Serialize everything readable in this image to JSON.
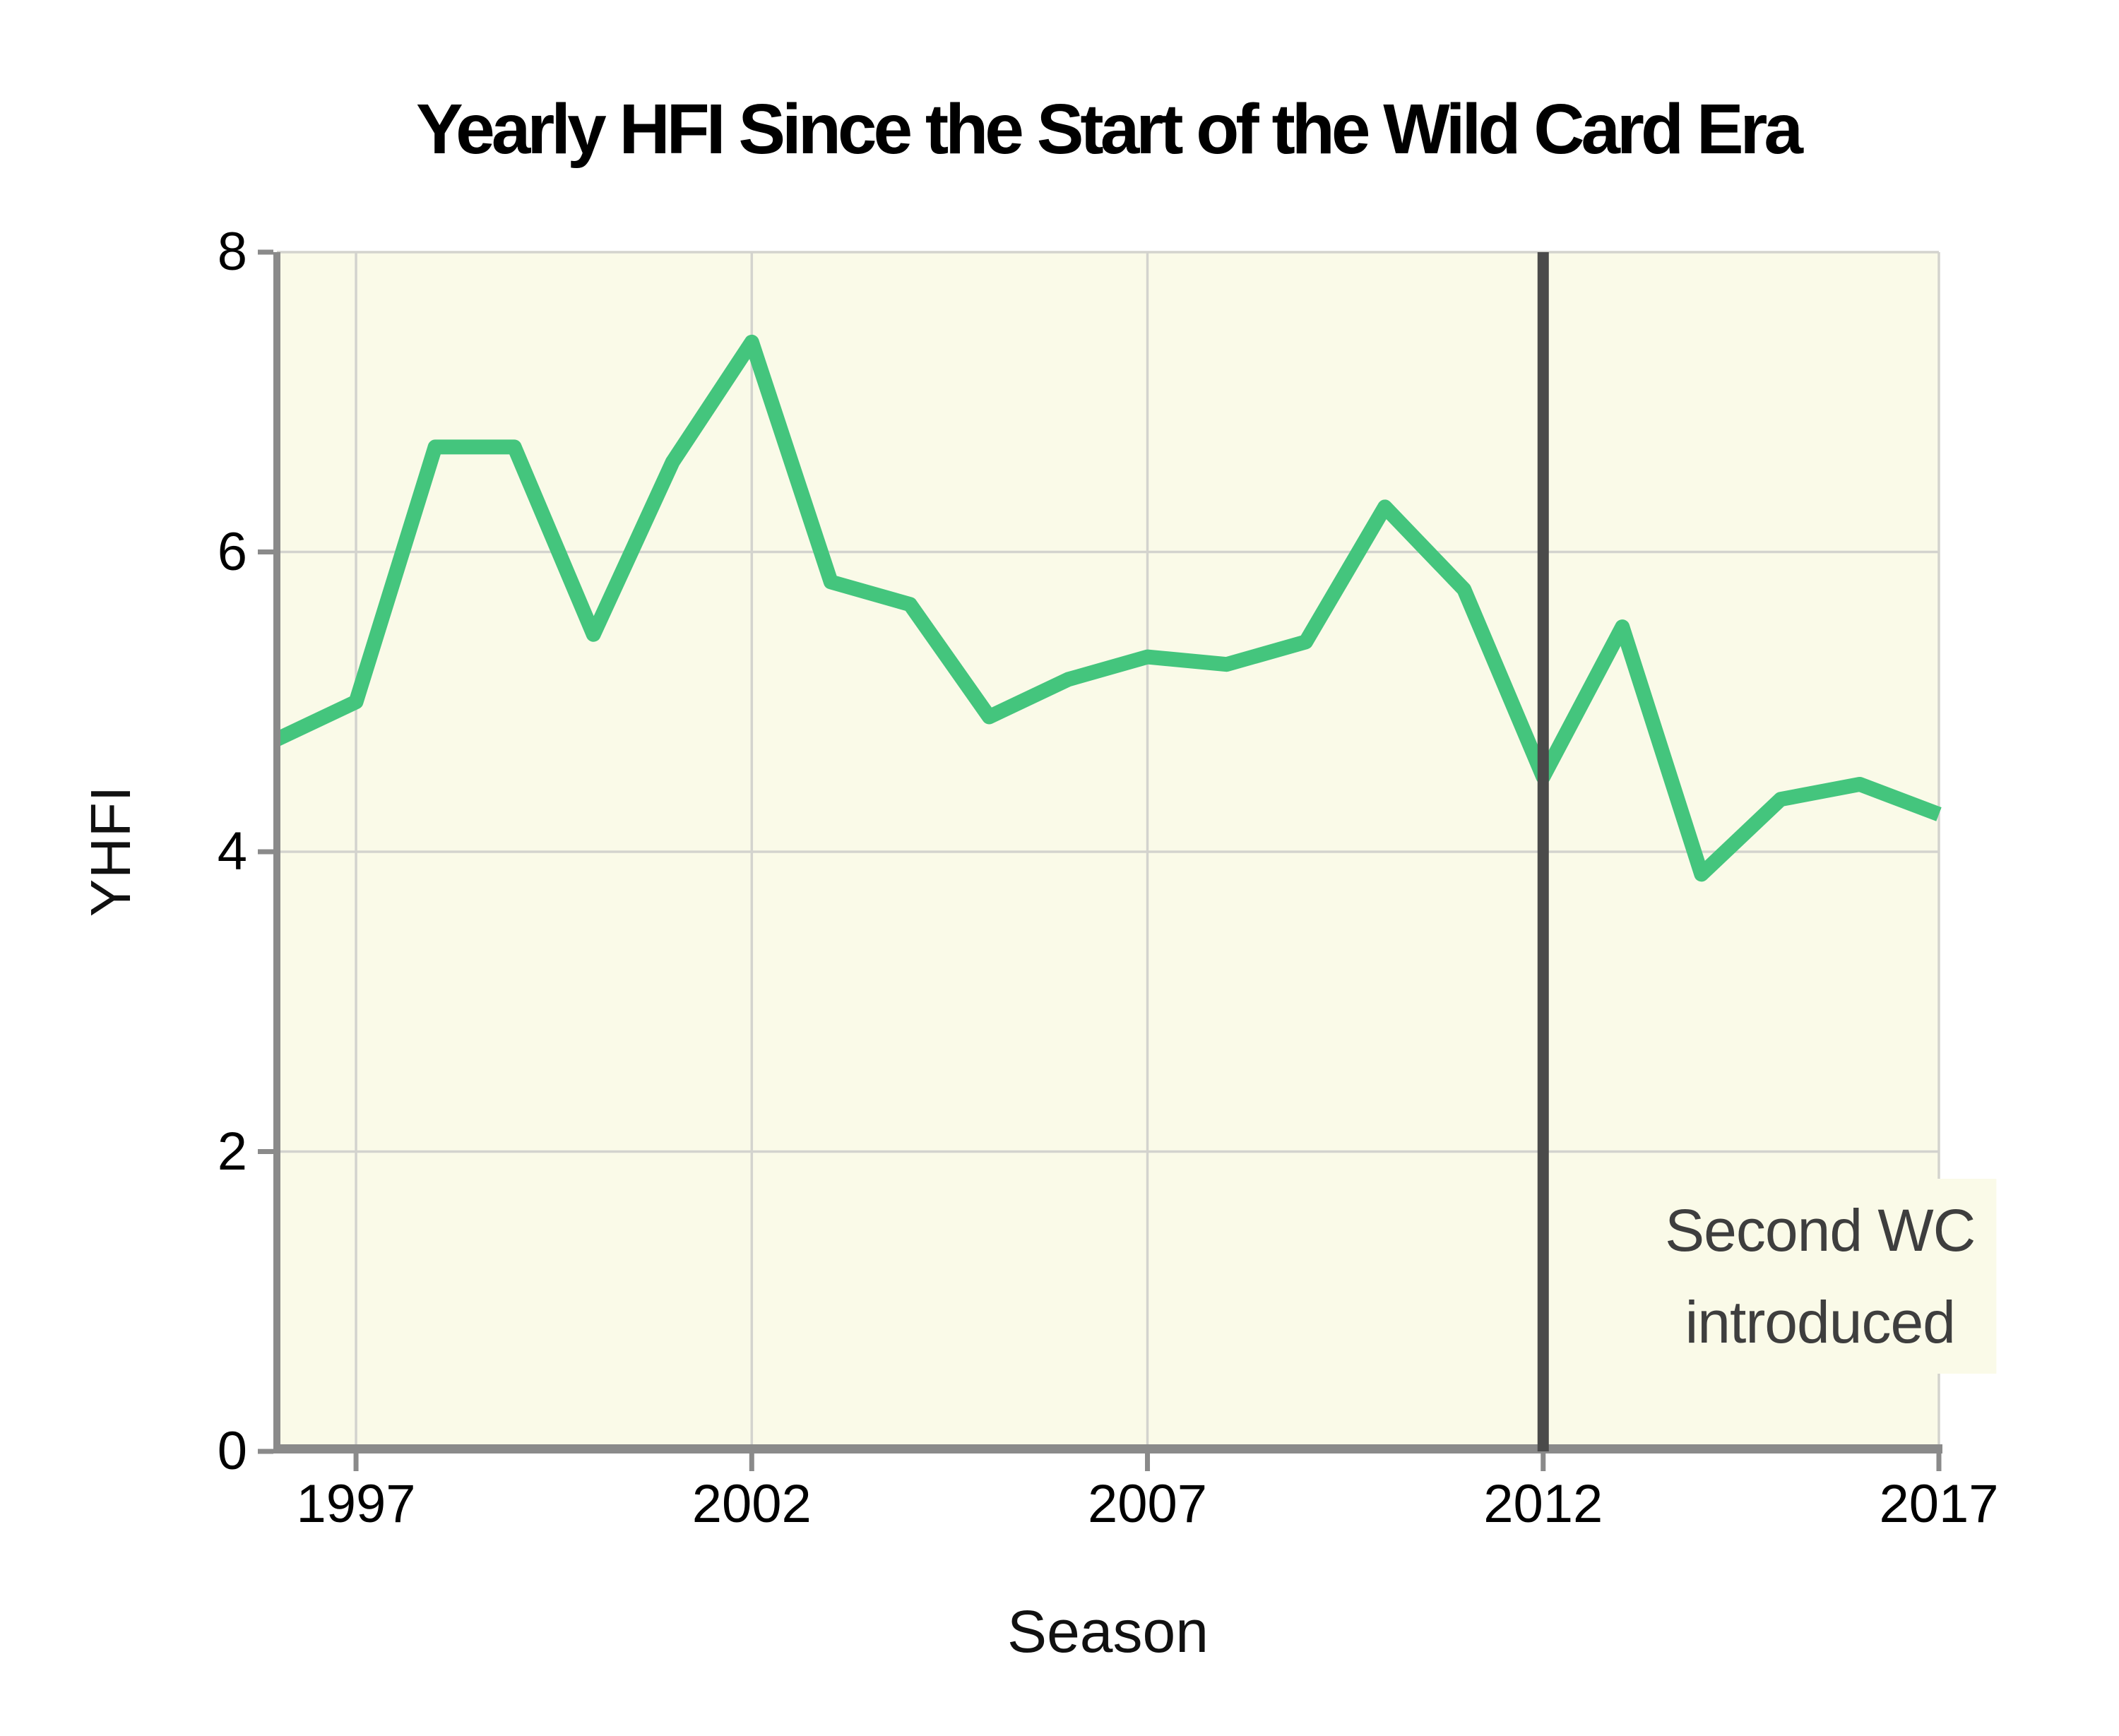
{
  "chart_data": {
    "type": "line",
    "title": "Yearly HFI Since the Start of the Wild Card Era",
    "xlabel": "Season",
    "ylabel": "YHFI",
    "x": [
      1996,
      1997,
      1998,
      1999,
      2000,
      2001,
      2002,
      2003,
      2004,
      2005,
      2006,
      2007,
      2008,
      2009,
      2010,
      2011,
      2012,
      2013,
      2014,
      2015,
      2016,
      2017
    ],
    "values": [
      4.75,
      5.0,
      6.7,
      6.7,
      5.45,
      6.6,
      7.4,
      5.8,
      5.65,
      4.9,
      5.15,
      5.3,
      5.25,
      5.4,
      6.3,
      5.75,
      4.5,
      5.5,
      3.85,
      4.35,
      4.45,
      4.25
    ],
    "x_ticks": [
      1997,
      2002,
      2007,
      2012,
      2017
    ],
    "y_ticks": [
      0,
      2,
      4,
      6,
      8
    ],
    "xlim": [
      1996,
      2017
    ],
    "ylim": [
      0,
      8
    ],
    "grid": true,
    "legend": "none",
    "annotation": {
      "line1": "Second WC",
      "line2": "introduced",
      "x": 2012
    },
    "colors": {
      "line": "#44C57D",
      "panel_bg": "#FAFAE8",
      "grid": "#D3D3CE",
      "axis": "#8A8A8A",
      "event_line": "#4A4A4A",
      "annotation_text": "#3E3E3E",
      "text": "#000000"
    }
  }
}
